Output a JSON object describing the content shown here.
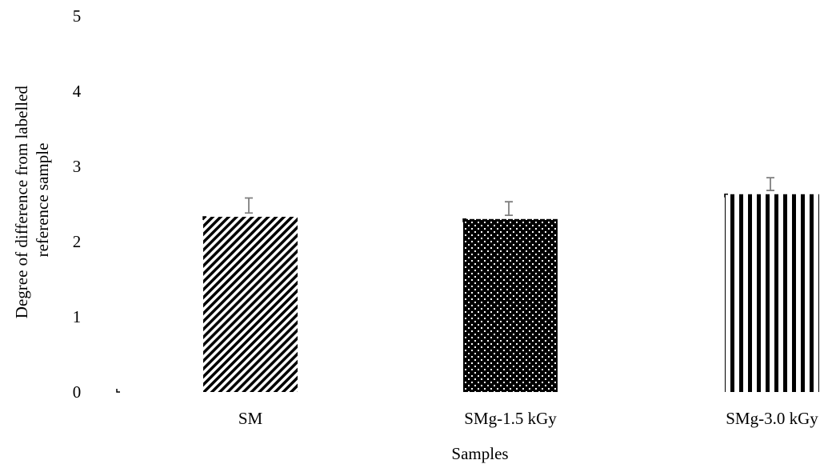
{
  "chart_data": {
    "type": "bar",
    "categories": [
      "SM",
      "SMg-1.5 kGy",
      "SMg-3.0 kGy"
    ],
    "values": [
      2.33,
      2.3,
      2.63
    ],
    "error": [
      0.2,
      0.18,
      0.17
    ],
    "ylim": [
      0,
      5
    ],
    "yticks": [
      "0",
      "1",
      "2",
      "3",
      "4",
      "5"
    ],
    "xlabel": "Samples",
    "ylabel_lines": [
      "Degree of difference from labelled",
      "reference sample"
    ],
    "patterns": [
      "diagonal-stripes",
      "dots",
      "vertical-stripes"
    ],
    "bar_color": "#000000",
    "error_bar_color": "#7f7f7f",
    "grid": false
  }
}
